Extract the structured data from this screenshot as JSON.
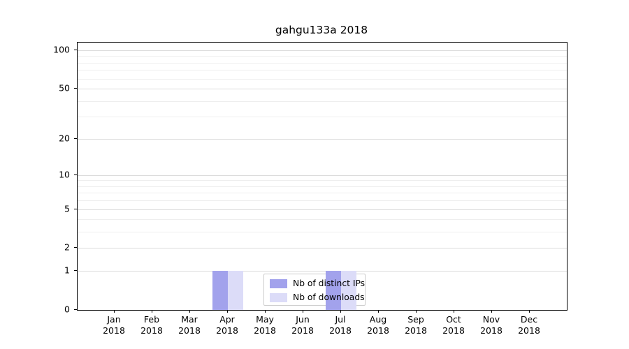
{
  "chart_data": {
    "type": "bar",
    "title": "gahgu133a 2018",
    "categories": [
      "Jan 2018",
      "Feb 2018",
      "Mar 2018",
      "Apr 2018",
      "May 2018",
      "Jun 2018",
      "Jul 2018",
      "Aug 2018",
      "Sep 2018",
      "Oct 2018",
      "Nov 2018",
      "Dec 2018"
    ],
    "series": [
      {
        "name": "Nb of distinct IPs",
        "color": "#a2a2ec",
        "values": [
          0,
          0,
          0,
          1,
          0,
          0,
          1,
          0,
          0,
          0,
          0,
          0
        ]
      },
      {
        "name": "Nb of downloads",
        "color": "#dcdcf8",
        "values": [
          0,
          0,
          0,
          1,
          0,
          0,
          1,
          0,
          0,
          0,
          0,
          0
        ]
      }
    ],
    "xlabel": "",
    "ylabel": "",
    "yscale": "log1p",
    "ylim": [
      0,
      115
    ],
    "yticks": [
      0,
      1,
      2,
      5,
      10,
      20,
      50,
      100
    ],
    "ytick_labels": [
      "0",
      "1",
      "2",
      "5",
      "10",
      "20",
      "50",
      "100"
    ],
    "minor_gridlines": [
      3,
      4,
      6,
      7,
      8,
      9,
      30,
      40,
      60,
      70,
      80,
      90
    ],
    "grid": "horizontal",
    "legend_position": "lower center"
  }
}
